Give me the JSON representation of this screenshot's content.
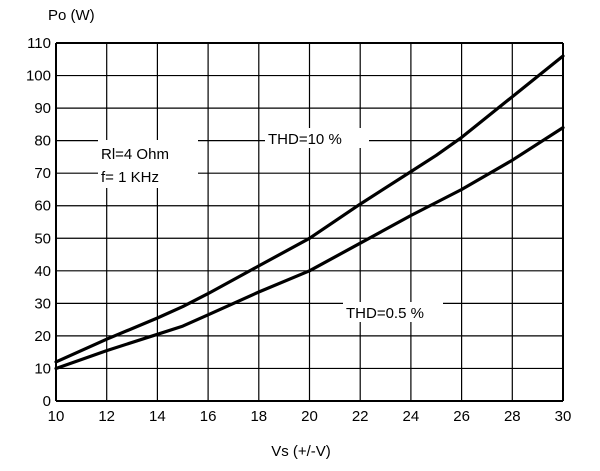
{
  "chart_data": {
    "type": "line",
    "title": "",
    "ylabel": "Po (W)",
    "xlabel": "Vs (+/-V)",
    "xlim": [
      10,
      30
    ],
    "ylim": [
      0,
      110
    ],
    "xticks": [
      10,
      12,
      14,
      16,
      18,
      20,
      22,
      24,
      26,
      28,
      30
    ],
    "yticks": [
      0,
      10,
      20,
      30,
      40,
      50,
      60,
      70,
      80,
      90,
      100,
      110
    ],
    "grid": true,
    "annotations": [
      "Rl=4 Ohm",
      "f= 1 KHz"
    ],
    "series": [
      {
        "name": "THD=10 %",
        "x": [
          10,
          12,
          14,
          15,
          16,
          18,
          20,
          22,
          24,
          25,
          26,
          28,
          30
        ],
        "y": [
          12,
          19,
          25.5,
          29,
          33,
          41.5,
          50,
          60.5,
          70.5,
          75.5,
          81,
          93.5,
          106
        ]
      },
      {
        "name": "THD=0.5 %",
        "x": [
          10,
          12,
          14,
          15,
          16,
          18,
          20,
          22,
          24,
          26,
          28,
          30
        ],
        "y": [
          10,
          15.5,
          20.5,
          23,
          26.5,
          33.5,
          40,
          48.5,
          57,
          65,
          74,
          84
        ]
      }
    ]
  }
}
